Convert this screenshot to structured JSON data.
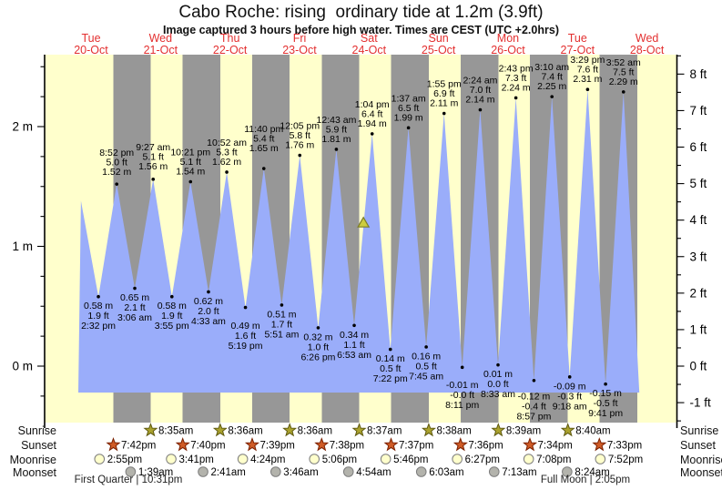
{
  "title": "Cabo Roche: rising  ordinary tide at 1.2m (3.9ft)",
  "subtitle": "Image captured 3 hours before high water. Times are CEST (UTC +2.0hrs)",
  "colors": {
    "day_band": "#ffffcc",
    "night_band": "#979797",
    "tide_fill": "#9aadfa",
    "axis": "#000000",
    "day_label_red": "#e33030",
    "event_text": "#000000",
    "sunrise_star_fill": "#aaa22e",
    "sunrise_star_edge": "#5f5a10",
    "sunset_star_fill": "#cf5b26",
    "sunset_star_edge": "#7a2000",
    "moonrise_fill": "#ffffcc",
    "moonset_fill": "#b3b3ac",
    "moon_edge": "#7d7d7d",
    "marker_fill": "#cdcd3e",
    "marker_edge": "#7d7d26"
  },
  "chart_data": {
    "type": "area",
    "title": "Cabo Roche: rising  ordinary tide at 1.2m (3.9ft)",
    "days": [
      {
        "dow": "Tue",
        "date": "20-Oct"
      },
      {
        "dow": "Wed",
        "date": "21-Oct"
      },
      {
        "dow": "Thu",
        "date": "22-Oct"
      },
      {
        "dow": "Fri",
        "date": "23-Oct"
      },
      {
        "dow": "Sat",
        "date": "24-Oct"
      },
      {
        "dow": "Sun",
        "date": "25-Oct"
      },
      {
        "dow": "Mon",
        "date": "26-Oct"
      },
      {
        "dow": "Tue",
        "date": "27-Oct"
      },
      {
        "dow": "Wed",
        "date": "28-Oct"
      }
    ],
    "y_axis_left": {
      "unit": "m",
      "ticks": [
        {
          "v": 0,
          "label": "0 m"
        },
        {
          "v": 1,
          "label": "1 m"
        },
        {
          "v": 2,
          "label": "2 m"
        }
      ]
    },
    "y_axis_right": {
      "unit": "ft",
      "ticks": [
        {
          "v": -1,
          "label": "-1 ft"
        },
        {
          "v": 0,
          "label": "0 ft"
        },
        {
          "v": 1,
          "label": "1 ft"
        },
        {
          "v": 2,
          "label": "2 ft"
        },
        {
          "v": 3,
          "label": "3 ft"
        },
        {
          "v": 4,
          "label": "4 ft"
        },
        {
          "v": 5,
          "label": "5 ft"
        },
        {
          "v": 6,
          "label": "6 ft"
        },
        {
          "v": 7,
          "label": "7 ft"
        },
        {
          "v": 8,
          "label": "8 ft"
        }
      ]
    },
    "tide_events": [
      {
        "day": 0,
        "time": "8:30 am",
        "type": "high",
        "height_m": 1.38,
        "labeled": false
      },
      {
        "day": 0,
        "time": "2:32 pm",
        "type": "low",
        "height_m": 0.58,
        "m_label": "0.58 m",
        "ft_label": "1.9 ft",
        "labeled": true
      },
      {
        "day": 0,
        "time": "8:52 pm",
        "type": "high",
        "height_m": 1.52,
        "m_label": "1.52 m",
        "ft_label": "5.0 ft",
        "labeled": true
      },
      {
        "day": 1,
        "time": "3:06 am",
        "type": "low",
        "height_m": 0.65,
        "m_label": "0.65 m",
        "ft_label": "2.1 ft",
        "labeled": true
      },
      {
        "day": 1,
        "time": "9:27 am",
        "type": "high",
        "height_m": 1.56,
        "m_label": "1.56 m",
        "ft_label": "5.1 ft",
        "labeled": true
      },
      {
        "day": 1,
        "time": "3:55 pm",
        "type": "low",
        "height_m": 0.58,
        "m_label": "0.58 m",
        "ft_label": "1.9 ft",
        "labeled": true
      },
      {
        "day": 1,
        "time": "10:21 pm",
        "type": "high",
        "height_m": 1.54,
        "m_label": "1.54 m",
        "ft_label": "5.1 ft",
        "labeled": true
      },
      {
        "day": 2,
        "time": "4:33 am",
        "type": "low",
        "height_m": 0.62,
        "m_label": "0.62 m",
        "ft_label": "2.0 ft",
        "labeled": true
      },
      {
        "day": 2,
        "time": "10:52 am",
        "type": "high",
        "height_m": 1.62,
        "m_label": "1.62 m",
        "ft_label": "5.3 ft",
        "labeled": true
      },
      {
        "day": 2,
        "time": "5:19 pm",
        "type": "low",
        "height_m": 0.49,
        "m_label": "0.49 m",
        "ft_label": "1.6 ft",
        "labeled": true
      },
      {
        "day": 2,
        "time": "11:40 pm",
        "type": "high",
        "height_m": 1.65,
        "m_label": "1.65 m",
        "ft_label": "5.4 ft",
        "labeled": true
      },
      {
        "day": 3,
        "time": "5:51 am",
        "type": "low",
        "height_m": 0.51,
        "m_label": "0.51 m",
        "ft_label": "1.7 ft",
        "labeled": true
      },
      {
        "day": 3,
        "time": "12:05 pm",
        "type": "high",
        "height_m": 1.76,
        "m_label": "1.76 m",
        "ft_label": "5.8 ft",
        "labeled": true
      },
      {
        "day": 3,
        "time": "6:26 pm",
        "type": "low",
        "height_m": 0.32,
        "m_label": "0.32 m",
        "ft_label": "1.0 ft",
        "labeled": true
      },
      {
        "day": 4,
        "time": "12:43 am",
        "type": "high",
        "height_m": 1.81,
        "m_label": "1.81 m",
        "ft_label": "5.9 ft",
        "labeled": true
      },
      {
        "day": 4,
        "time": "6:53 am",
        "type": "low",
        "height_m": 0.34,
        "m_label": "0.34 m",
        "ft_label": "1.1 ft",
        "labeled": true
      },
      {
        "day": 4,
        "time": "1:04 pm",
        "type": "high",
        "height_m": 1.94,
        "m_label": "1.94 m",
        "ft_label": "6.4 ft",
        "labeled": true
      },
      {
        "day": 4,
        "time": "7:22 pm",
        "type": "low",
        "height_m": 0.14,
        "m_label": "0.14 m",
        "ft_label": "0.5 ft",
        "labeled": true
      },
      {
        "day": 5,
        "time": "1:37 am",
        "type": "high",
        "height_m": 1.99,
        "m_label": "1.99 m",
        "ft_label": "6.5 ft",
        "labeled": true
      },
      {
        "day": 5,
        "time": "7:45 am",
        "type": "low",
        "height_m": 0.16,
        "m_label": "0.16 m",
        "ft_label": "0.5 ft",
        "labeled": true
      },
      {
        "day": 5,
        "time": "1:55 pm",
        "type": "high",
        "height_m": 2.11,
        "m_label": "2.11 m",
        "ft_label": "6.9 ft",
        "labeled": true
      },
      {
        "day": 5,
        "time": "8:11 pm",
        "type": "low",
        "height_m": -0.01,
        "m_label": "-0.01 m",
        "ft_label": "-0.0 ft",
        "labeled": true
      },
      {
        "day": 6,
        "time": "2:24 am",
        "type": "high",
        "height_m": 2.14,
        "m_label": "2.14 m",
        "ft_label": "7.0 ft",
        "labeled": true
      },
      {
        "day": 6,
        "time": "8:33 am",
        "type": "low",
        "height_m": 0.01,
        "m_label": "0.01 m",
        "ft_label": "0.0 ft",
        "labeled": true
      },
      {
        "day": 6,
        "time": "2:43 pm",
        "type": "high",
        "height_m": 2.24,
        "m_label": "2.24 m",
        "ft_label": "7.3 ft",
        "labeled": true
      },
      {
        "day": 6,
        "time": "8:57 pm",
        "type": "low",
        "height_m": -0.12,
        "m_label": "-0.12 m",
        "ft_label": "-0.4 ft",
        "labeled": true
      },
      {
        "day": 7,
        "time": "3:10 am",
        "type": "high",
        "height_m": 2.25,
        "m_label": "2.25 m",
        "ft_label": "7.4 ft",
        "labeled": true
      },
      {
        "day": 7,
        "time": "9:18 am",
        "type": "low",
        "height_m": -0.09,
        "m_label": "-0.09 m",
        "ft_label": "-0.3 ft",
        "labeled": true
      },
      {
        "day": 7,
        "time": "3:29 pm",
        "type": "high",
        "height_m": 2.31,
        "m_label": "2.31 m",
        "ft_label": "7.6 ft",
        "labeled": true
      },
      {
        "day": 7,
        "time": "9:41 pm",
        "type": "low",
        "height_m": -0.15,
        "m_label": "-0.15 m",
        "ft_label": "-0.5 ft",
        "labeled": true
      },
      {
        "day": 8,
        "time": "3:52 am",
        "type": "high",
        "height_m": 2.29,
        "m_label": "2.29 m",
        "ft_label": "7.5 ft",
        "labeled": true
      }
    ],
    "current_marker": {
      "day": 4,
      "time": "10:04 am",
      "height_m": 1.2
    }
  },
  "astro": {
    "row_labels": [
      "Sunrise",
      "Sunset",
      "Moonrise",
      "Moonset"
    ],
    "sunrise": [
      {
        "day": 1,
        "time": "8:35am"
      },
      {
        "day": 2,
        "time": "8:36am"
      },
      {
        "day": 3,
        "time": "8:36am"
      },
      {
        "day": 4,
        "time": "8:37am"
      },
      {
        "day": 5,
        "time": "8:38am"
      },
      {
        "day": 6,
        "time": "8:39am"
      },
      {
        "day": 7,
        "time": "8:40am"
      }
    ],
    "sunset": [
      {
        "day": 0,
        "time": "7:42pm"
      },
      {
        "day": 1,
        "time": "7:40pm"
      },
      {
        "day": 2,
        "time": "7:39pm"
      },
      {
        "day": 3,
        "time": "7:38pm"
      },
      {
        "day": 4,
        "time": "7:37pm"
      },
      {
        "day": 5,
        "time": "7:36pm"
      },
      {
        "day": 6,
        "time": "7:34pm"
      },
      {
        "day": 7,
        "time": "7:33pm"
      }
    ],
    "moonrise": [
      {
        "day": 0,
        "time": "2:55pm"
      },
      {
        "day": 1,
        "time": "3:41pm"
      },
      {
        "day": 2,
        "time": "4:24pm"
      },
      {
        "day": 3,
        "time": "5:06pm"
      },
      {
        "day": 4,
        "time": "5:46pm"
      },
      {
        "day": 5,
        "time": "6:27pm"
      },
      {
        "day": 6,
        "time": "7:08pm"
      },
      {
        "day": 7,
        "time": "7:52pm"
      }
    ],
    "moonset": [
      {
        "day": 1,
        "time": "1:39am"
      },
      {
        "day": 2,
        "time": "2:41am"
      },
      {
        "day": 3,
        "time": "3:46am"
      },
      {
        "day": 4,
        "time": "4:54am"
      },
      {
        "day": 5,
        "time": "6:03am"
      },
      {
        "day": 6,
        "time": "7:13am"
      },
      {
        "day": 7,
        "time": "8:24am"
      }
    ],
    "moon_phases": [
      {
        "label": "First Quarter | 10:31pm"
      },
      {
        "label": "Full Moon | 2:05pm"
      }
    ]
  }
}
